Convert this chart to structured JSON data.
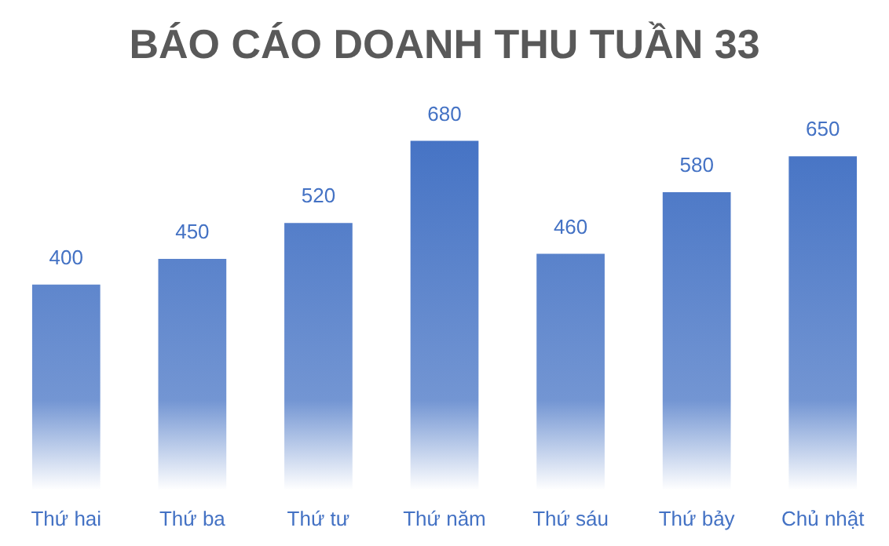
{
  "chart_data": {
    "type": "bar",
    "title": "BÁO CÁO DOANH THU TUẦN 33",
    "categories": [
      "Thứ hai",
      "Thứ ba",
      "Thứ tư",
      "Thứ năm",
      "Thứ sáu",
      "Thứ bảy",
      "Chủ nhật"
    ],
    "values": [
      400,
      450,
      520,
      680,
      460,
      580,
      650
    ],
    "color": "#4472c4",
    "data_labels": true,
    "grid": false,
    "legend": false
  }
}
